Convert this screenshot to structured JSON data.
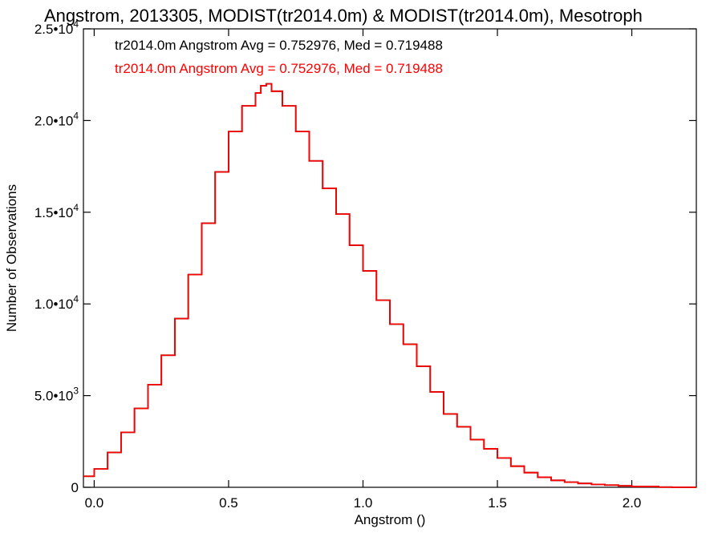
{
  "chart_data": {
    "type": "line",
    "style": "step",
    "title": "Angstrom, 2013305, MODIST(tr2014.0m) & MODIST(tr2014.0m), Mesotroph",
    "xlabel": "Angstrom ()",
    "ylabel": "Number of Observations",
    "xlim": [
      -0.04,
      2.24
    ],
    "ylim": [
      0,
      25000
    ],
    "grid": false,
    "x_ticks": [
      {
        "value": 0.0,
        "label": "0.0"
      },
      {
        "value": 0.5,
        "label": "0.5"
      },
      {
        "value": 1.0,
        "label": "1.0"
      },
      {
        "value": 1.5,
        "label": "1.5"
      },
      {
        "value": 2.0,
        "label": "2.0"
      }
    ],
    "y_ticks": [
      {
        "value": 0,
        "mantissa": "0",
        "exponent": ""
      },
      {
        "value": 5000,
        "mantissa": "5.0•10",
        "exponent": "3"
      },
      {
        "value": 10000,
        "mantissa": "1.0•10",
        "exponent": "4"
      },
      {
        "value": 15000,
        "mantissa": "1.5•10",
        "exponent": "4"
      },
      {
        "value": 20000,
        "mantissa": "2.0•10",
        "exponent": "4"
      },
      {
        "value": 25000,
        "mantissa": "2.5•10",
        "exponent": "4"
      }
    ],
    "annotations": [
      {
        "text": "tr2014.0m Angstrom Avg = 0.752976, Med = 0.719488",
        "color": "#000000"
      },
      {
        "text": "tr2014.0m Angstrom Avg = 0.752976, Med = 0.719488",
        "color": "#ff0000"
      }
    ],
    "series": [
      {
        "color": "#000000",
        "x": [
          -0.04,
          0.0,
          0.05,
          0.1,
          0.15,
          0.2,
          0.25,
          0.3,
          0.35,
          0.4,
          0.45,
          0.5,
          0.55,
          0.6,
          0.62,
          0.64,
          0.66,
          0.7,
          0.75,
          0.8,
          0.85,
          0.9,
          0.95,
          1.0,
          1.05,
          1.1,
          1.15,
          1.2,
          1.25,
          1.3,
          1.35,
          1.4,
          1.45,
          1.5,
          1.55,
          1.6,
          1.65,
          1.7,
          1.75,
          1.8,
          1.85,
          1.9,
          1.95,
          2.0,
          2.05,
          2.1,
          2.15,
          2.2,
          2.24
        ],
        "values": [
          600,
          1000,
          1900,
          3000,
          4300,
          5600,
          7200,
          9200,
          11600,
          14400,
          17200,
          19400,
          20800,
          21500,
          21900,
          22000,
          21600,
          20800,
          19400,
          17800,
          16300,
          14900,
          13200,
          11800,
          10200,
          8900,
          7800,
          6600,
          5200,
          4000,
          3300,
          2600,
          2100,
          1600,
          1150,
          800,
          550,
          380,
          280,
          210,
          160,
          120,
          80,
          40,
          40,
          10,
          0,
          0,
          0
        ]
      },
      {
        "color": "#ff0000",
        "x": [
          -0.04,
          0.0,
          0.05,
          0.1,
          0.15,
          0.2,
          0.25,
          0.3,
          0.35,
          0.4,
          0.45,
          0.5,
          0.55,
          0.6,
          0.62,
          0.64,
          0.66,
          0.7,
          0.75,
          0.8,
          0.85,
          0.9,
          0.95,
          1.0,
          1.05,
          1.1,
          1.15,
          1.2,
          1.25,
          1.3,
          1.35,
          1.4,
          1.45,
          1.5,
          1.55,
          1.6,
          1.65,
          1.7,
          1.75,
          1.8,
          1.85,
          1.9,
          1.95,
          2.0,
          2.05,
          2.1,
          2.15,
          2.2,
          2.24
        ],
        "values": [
          600,
          1000,
          1900,
          3000,
          4300,
          5600,
          7200,
          9200,
          11600,
          14400,
          17200,
          19400,
          20800,
          21500,
          21900,
          22000,
          21600,
          20800,
          19400,
          17800,
          16300,
          14900,
          13200,
          11800,
          10200,
          8900,
          7800,
          6600,
          5200,
          4000,
          3300,
          2600,
          2100,
          1600,
          1150,
          800,
          550,
          380,
          280,
          210,
          160,
          120,
          80,
          40,
          40,
          10,
          0,
          0,
          0
        ]
      }
    ]
  }
}
